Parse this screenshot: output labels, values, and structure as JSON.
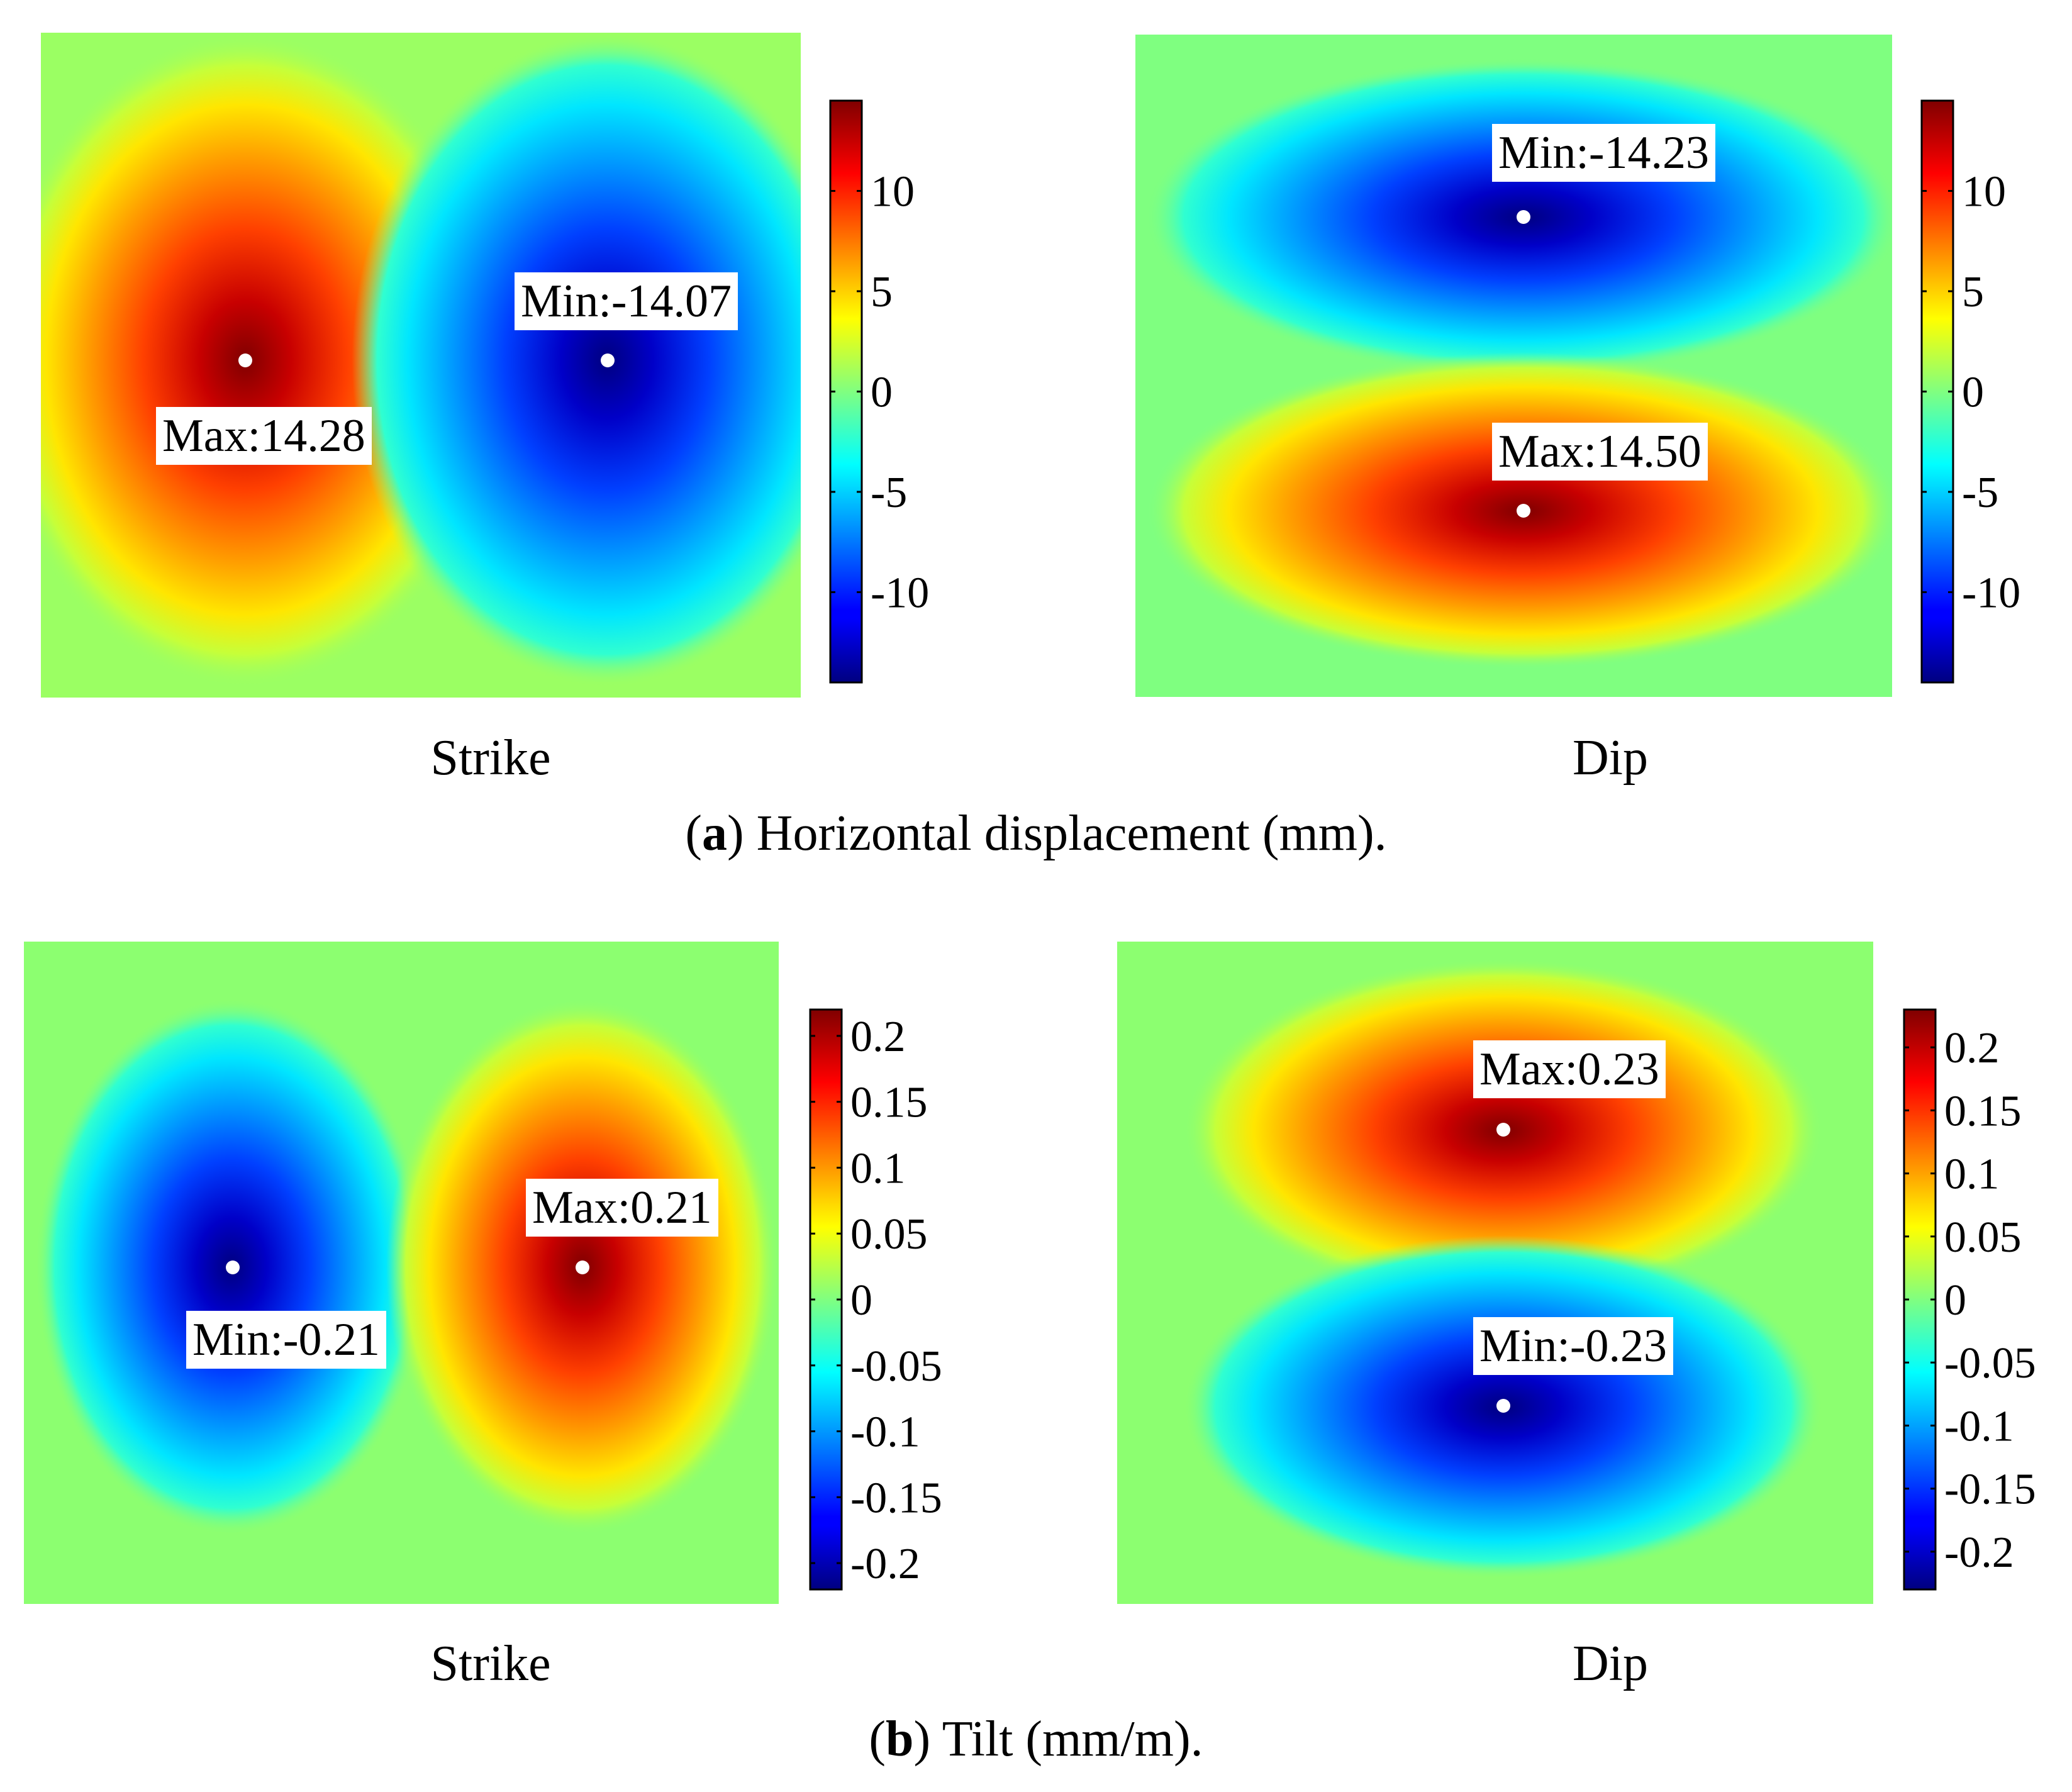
{
  "chart_data": [
    {
      "type": "heatmap",
      "panel": "a",
      "title": "Strike",
      "quantity": "Horizontal displacement (mm)",
      "field": "two lobes: maximum on left, minimum on right",
      "colorbar": {
        "range": [
          -14.5,
          14.5
        ],
        "ticks": [
          10,
          5,
          0,
          -5,
          -10
        ],
        "tick_labels": [
          "10",
          "5",
          "0",
          "-5",
          "-10"
        ]
      },
      "extrema": [
        {
          "kind": "max",
          "label": "Max:14.28",
          "value": 14.28
        },
        {
          "kind": "min",
          "label": "Min:-14.07",
          "value": -14.07
        }
      ]
    },
    {
      "type": "heatmap",
      "panel": "a",
      "title": "Dip",
      "quantity": "Horizontal displacement (mm)",
      "field": "two lobes: minimum on top, maximum on bottom",
      "colorbar": {
        "range": [
          -14.5,
          14.5
        ],
        "ticks": [
          10,
          5,
          0,
          -5,
          -10
        ],
        "tick_labels": [
          "10",
          "5",
          "0",
          "-5",
          "-10"
        ]
      },
      "extrema": [
        {
          "kind": "min",
          "label": "Min:-14.23",
          "value": -14.23
        },
        {
          "kind": "max",
          "label": "Max:14.50",
          "value": 14.5
        }
      ]
    },
    {
      "type": "heatmap",
      "panel": "b",
      "title": "Strike",
      "quantity": "Tilt (mm/m)",
      "field": "two lobes: minimum on left, maximum on right",
      "colorbar": {
        "range": [
          -0.22,
          0.22
        ],
        "ticks": [
          0.2,
          0.15,
          0.1,
          0.05,
          0,
          -0.05,
          -0.1,
          -0.15,
          -0.2
        ],
        "tick_labels": [
          "0.2",
          "0.15",
          "0.1",
          "0.05",
          "0",
          "-0.05",
          "-0.1",
          "-0.15",
          "-0.2"
        ]
      },
      "extrema": [
        {
          "kind": "max",
          "label": "Max:0.21",
          "value": 0.21
        },
        {
          "kind": "min",
          "label": "Min:-0.21",
          "value": -0.21
        }
      ]
    },
    {
      "type": "heatmap",
      "panel": "b",
      "title": "Dip",
      "quantity": "Tilt (mm/m)",
      "field": "two lobes: maximum on top, minimum on bottom",
      "colorbar": {
        "range": [
          -0.23,
          0.23
        ],
        "ticks": [
          0.2,
          0.15,
          0.1,
          0.05,
          0,
          -0.05,
          -0.1,
          -0.15,
          -0.2
        ],
        "tick_labels": [
          "0.2",
          "0.15",
          "0.1",
          "0.05",
          "0",
          "-0.05",
          "-0.1",
          "-0.15",
          "-0.2"
        ]
      },
      "extrema": [
        {
          "kind": "max",
          "label": "Max:0.23",
          "value": 0.23
        },
        {
          "kind": "min",
          "label": "Min:-0.23",
          "value": -0.23
        }
      ]
    }
  ],
  "captions": {
    "a": {
      "letter": "a",
      "text": ") Horizontal displacement (mm)."
    },
    "b": {
      "letter": "b",
      "text": ") Tilt (mm/m)."
    }
  }
}
